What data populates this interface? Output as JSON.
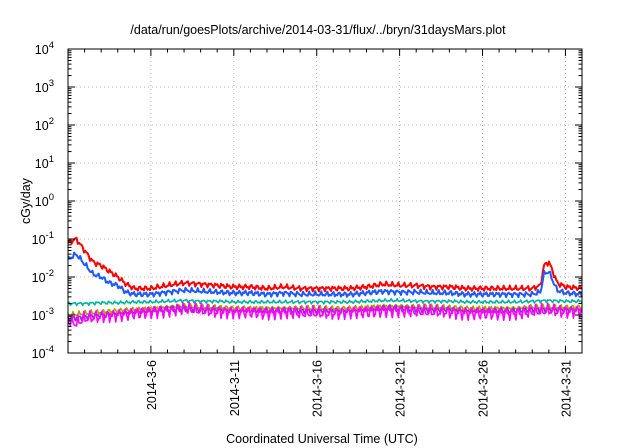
{
  "chart_data": {
    "type": "line",
    "title": "/data/run/goesPlots/archive/2014-03-31/flux/../bryn/31daysMars.plot",
    "xlabel": "Coordinated Universal Time (UTC)",
    "ylabel": "cGy/day",
    "yscale": "log",
    "ylim": [
      0.0001,
      10000
    ],
    "xlim": [
      1.0,
      32.0
    ],
    "y_ticks": [
      {
        "base": "10",
        "exp": "-4",
        "value": 0.0001
      },
      {
        "base": "10",
        "exp": "-3",
        "value": 0.001
      },
      {
        "base": "10",
        "exp": "-2",
        "value": 0.01
      },
      {
        "base": "10",
        "exp": "-1",
        "value": 0.1
      },
      {
        "base": "10",
        "exp": "0",
        "value": 1
      },
      {
        "base": "10",
        "exp": "1",
        "value": 10
      },
      {
        "base": "10",
        "exp": "2",
        "value": 100
      },
      {
        "base": "10",
        "exp": "3",
        "value": 1000
      },
      {
        "base": "10",
        "exp": "4",
        "value": 10000
      }
    ],
    "x_ticks": [
      {
        "label": "2014-3-6",
        "day": 6
      },
      {
        "label": "2014-3-11",
        "day": 11
      },
      {
        "label": "2014-3-16",
        "day": 16
      },
      {
        "label": "2014-3-21",
        "day": 21
      },
      {
        "label": "2014-3-26",
        "day": 26
      },
      {
        "label": "2014-3-31",
        "day": 31
      }
    ],
    "grid": true,
    "series": [
      {
        "name": "red",
        "color": "#ff0000",
        "x": [
          1.0,
          1.5,
          2.0,
          2.5,
          3.0,
          3.5,
          4.0,
          4.5,
          5.0,
          6.0,
          7.0,
          8.0,
          9.0,
          10.0,
          11.0,
          12.0,
          13.0,
          14.0,
          15.0,
          16.0,
          17.0,
          18.0,
          19.0,
          20.0,
          21.0,
          22.0,
          23.0,
          24.0,
          25.0,
          26.0,
          27.0,
          28.0,
          29.0,
          29.5,
          29.7,
          30.0,
          30.3,
          30.5,
          31.0,
          32.0
        ],
        "y": [
          0.08,
          0.1,
          0.05,
          0.025,
          0.02,
          0.014,
          0.01,
          0.0065,
          0.005,
          0.005,
          0.006,
          0.007,
          0.0065,
          0.006,
          0.0055,
          0.0055,
          0.005,
          0.0055,
          0.005,
          0.005,
          0.005,
          0.005,
          0.0055,
          0.0065,
          0.006,
          0.006,
          0.0055,
          0.0055,
          0.005,
          0.005,
          0.005,
          0.005,
          0.005,
          0.006,
          0.02,
          0.025,
          0.012,
          0.007,
          0.0055,
          0.005
        ]
      },
      {
        "name": "blue",
        "color": "#1e5aff",
        "x": [
          1.0,
          1.5,
          2.0,
          2.5,
          3.0,
          3.5,
          4.0,
          4.5,
          5.0,
          6.0,
          7.0,
          8.0,
          9.0,
          10.0,
          11.0,
          12.0,
          13.0,
          14.0,
          15.0,
          16.0,
          17.0,
          18.0,
          19.0,
          20.0,
          21.0,
          22.0,
          23.0,
          24.0,
          25.0,
          26.0,
          27.0,
          28.0,
          29.0,
          29.5,
          29.7,
          30.0,
          30.3,
          30.5,
          31.0,
          32.0
        ],
        "y": [
          0.03,
          0.04,
          0.022,
          0.012,
          0.01,
          0.007,
          0.006,
          0.004,
          0.0035,
          0.0035,
          0.004,
          0.0045,
          0.0042,
          0.004,
          0.0038,
          0.0038,
          0.0035,
          0.0038,
          0.0035,
          0.0035,
          0.0035,
          0.0035,
          0.0038,
          0.0042,
          0.004,
          0.004,
          0.0038,
          0.0038,
          0.0035,
          0.0035,
          0.0035,
          0.0035,
          0.0035,
          0.004,
          0.012,
          0.014,
          0.007,
          0.0045,
          0.0038,
          0.0035
        ]
      },
      {
        "name": "teal",
        "color": "#00b3a0",
        "x": [
          1.0,
          2.0,
          3.0,
          4.0,
          5.0,
          6.0,
          7.0,
          8.0,
          9.0,
          10.0,
          11.0,
          12.0,
          13.0,
          14.0,
          15.0,
          16.0,
          17.0,
          18.0,
          19.0,
          20.0,
          21.0,
          22.0,
          23.0,
          24.0,
          25.0,
          26.0,
          27.0,
          28.0,
          29.0,
          30.0,
          31.0,
          32.0
        ],
        "y": [
          0.002,
          0.002,
          0.0021,
          0.0021,
          0.0022,
          0.0022,
          0.0023,
          0.0024,
          0.0023,
          0.0023,
          0.0022,
          0.0022,
          0.0022,
          0.0022,
          0.0022,
          0.0022,
          0.0022,
          0.0022,
          0.0023,
          0.0024,
          0.0024,
          0.0023,
          0.0023,
          0.0023,
          0.0022,
          0.0022,
          0.0022,
          0.0022,
          0.0023,
          0.0024,
          0.0023,
          0.0023
        ]
      },
      {
        "name": "olive",
        "color": "#b59a00",
        "x": [
          1.0,
          2.0,
          3.0,
          4.0,
          5.0,
          6.0,
          7.0,
          8.0,
          9.0,
          10.0,
          11.0,
          12.0,
          13.0,
          14.0,
          15.0,
          16.0,
          17.0,
          18.0,
          19.0,
          20.0,
          21.0,
          22.0,
          23.0,
          24.0,
          25.0,
          26.0,
          27.0,
          28.0,
          29.0,
          30.0,
          31.0,
          32.0
        ],
        "y": [
          0.001,
          0.0011,
          0.0012,
          0.0013,
          0.0014,
          0.0015,
          0.0016,
          0.0017,
          0.0016,
          0.0016,
          0.0015,
          0.0015,
          0.0015,
          0.0015,
          0.0015,
          0.0015,
          0.0015,
          0.0015,
          0.0016,
          0.0017,
          0.0017,
          0.0016,
          0.0016,
          0.0016,
          0.0015,
          0.0015,
          0.0015,
          0.0015,
          0.0016,
          0.0016,
          0.0016,
          0.0016
        ]
      },
      {
        "name": "purple",
        "color": "#8a2be2",
        "x": [
          1.0,
          2.0,
          3.0,
          4.0,
          5.0,
          6.0,
          7.0,
          8.0,
          9.0,
          10.0,
          11.0,
          12.0,
          13.0,
          14.0,
          15.0,
          16.0,
          17.0,
          18.0,
          19.0,
          20.0,
          21.0,
          22.0,
          23.0,
          24.0,
          25.0,
          26.0,
          27.0,
          28.0,
          29.0,
          30.0,
          31.0,
          32.0
        ],
        "y": [
          0.0008,
          0.0009,
          0.001,
          0.0011,
          0.0012,
          0.0013,
          0.0014,
          0.0015,
          0.0014,
          0.0014,
          0.0013,
          0.0013,
          0.0013,
          0.0013,
          0.0013,
          0.0013,
          0.0013,
          0.0013,
          0.0014,
          0.0015,
          0.0015,
          0.0014,
          0.0014,
          0.0014,
          0.0013,
          0.0013,
          0.0013,
          0.0013,
          0.0014,
          0.0014,
          0.0014,
          0.0014
        ]
      },
      {
        "name": "magenta",
        "color": "#ff00ff",
        "x": [
          1.0,
          1.5,
          2.0,
          3.0,
          4.0,
          5.0,
          6.0,
          7.0,
          8.0,
          9.0,
          10.0,
          11.0,
          12.0,
          13.0,
          14.0,
          15.0,
          16.0,
          17.0,
          18.0,
          19.0,
          20.0,
          21.0,
          22.0,
          23.0,
          24.0,
          25.0,
          26.0,
          27.0,
          28.0,
          29.0,
          30.0,
          31.0,
          32.0
        ],
        "y": [
          0.0007,
          0.0006,
          0.0008,
          0.0009,
          0.001,
          0.0011,
          0.0012,
          0.0013,
          0.0014,
          0.0013,
          0.0012,
          0.0012,
          0.0012,
          0.0011,
          0.0012,
          0.0011,
          0.0011,
          0.0011,
          0.0012,
          0.0012,
          0.0013,
          0.0013,
          0.0012,
          0.0012,
          0.0012,
          0.0011,
          0.0011,
          0.0011,
          0.0011,
          0.0012,
          0.0013,
          0.0012,
          0.0013
        ]
      }
    ]
  }
}
